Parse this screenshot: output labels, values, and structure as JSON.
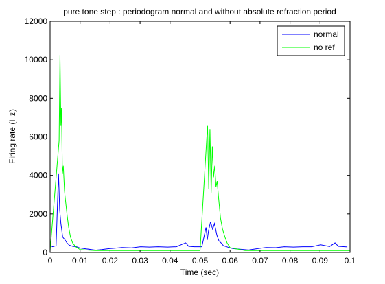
{
  "chart_data": {
    "type": "line",
    "title": "pure tone step : periodogram normal and without absolute refraction period",
    "xlabel": "Time (sec)",
    "ylabel": "Firing rate (Hz)",
    "xlim": [
      0,
      0.1
    ],
    "ylim": [
      0,
      12000
    ],
    "xticks": [
      0,
      0.01,
      0.02,
      0.03,
      0.04,
      0.05,
      0.06,
      0.07,
      0.08,
      0.09,
      0.1
    ],
    "xtick_labels": [
      "0",
      "0.01",
      "0.02",
      "0.03",
      "0.04",
      "0.05",
      "0.06",
      "0.07",
      "0.08",
      "0.09",
      "0.1"
    ],
    "yticks": [
      0,
      2000,
      4000,
      6000,
      8000,
      10000,
      12000
    ],
    "ytick_labels": [
      "0",
      "2000",
      "4000",
      "6000",
      "8000",
      "10000",
      "12000"
    ],
    "grid": false,
    "legend_position": "top-right",
    "series": [
      {
        "name": "normal",
        "color": "#0000ff",
        "x": [
          0.0003,
          0.0008,
          0.0013,
          0.002,
          0.0028,
          0.0032,
          0.0036,
          0.0042,
          0.005,
          0.0056,
          0.0064,
          0.0075,
          0.0088,
          0.01,
          0.0152,
          0.0172,
          0.0197,
          0.0213,
          0.024,
          0.0272,
          0.0302,
          0.0331,
          0.036,
          0.0392,
          0.0421,
          0.0452,
          0.0462,
          0.048,
          0.0506,
          0.052,
          0.0524,
          0.0528,
          0.0535,
          0.0542,
          0.0548,
          0.0556,
          0.0563,
          0.057,
          0.0578,
          0.0588,
          0.0598,
          0.061,
          0.0662,
          0.0692,
          0.072,
          0.0752,
          0.0781,
          0.0812,
          0.0842,
          0.0872,
          0.0902,
          0.0932,
          0.095,
          0.0961,
          0.0991
        ],
        "y": [
          350,
          300,
          320,
          350,
          4100,
          2200,
          1500,
          800,
          650,
          500,
          380,
          320,
          300,
          230,
          120,
          150,
          200,
          220,
          260,
          240,
          300,
          280,
          300,
          280,
          300,
          500,
          320,
          300,
          300,
          1300,
          650,
          1100,
          1600,
          1200,
          1500,
          900,
          600,
          500,
          350,
          300,
          250,
          200,
          130,
          200,
          260,
          250,
          300,
          280,
          300,
          300,
          400,
          310,
          500,
          320,
          290
        ]
      },
      {
        "name": "no ref",
        "color": "#00ff00",
        "x": [
          0.0,
          0.003,
          0.0033,
          0.0036,
          0.0038,
          0.0041,
          0.0044,
          0.0048,
          0.0052,
          0.0057,
          0.0062,
          0.0068,
          0.0075,
          0.0085,
          0.01,
          0.015,
          0.02,
          0.025,
          0.03,
          0.035,
          0.04,
          0.045,
          0.05,
          0.0525,
          0.0529,
          0.0533,
          0.0537,
          0.0541,
          0.0545,
          0.0549,
          0.0553,
          0.0557,
          0.0562,
          0.0568,
          0.0575,
          0.0583,
          0.059,
          0.06,
          0.065,
          0.07,
          0.075,
          0.08,
          0.085,
          0.09,
          0.095,
          0.1
        ],
        "y": [
          100,
          5800,
          10250,
          6600,
          7500,
          4100,
          4500,
          3200,
          2600,
          1900,
          1300,
          800,
          500,
          300,
          150,
          100,
          100,
          100,
          100,
          100,
          100,
          100,
          100,
          6600,
          3300,
          6400,
          3100,
          5500,
          3900,
          4500,
          3400,
          3700,
          2800,
          1800,
          1200,
          800,
          500,
          250,
          100,
          100,
          100,
          100,
          100,
          100,
          100,
          100
        ]
      }
    ]
  }
}
